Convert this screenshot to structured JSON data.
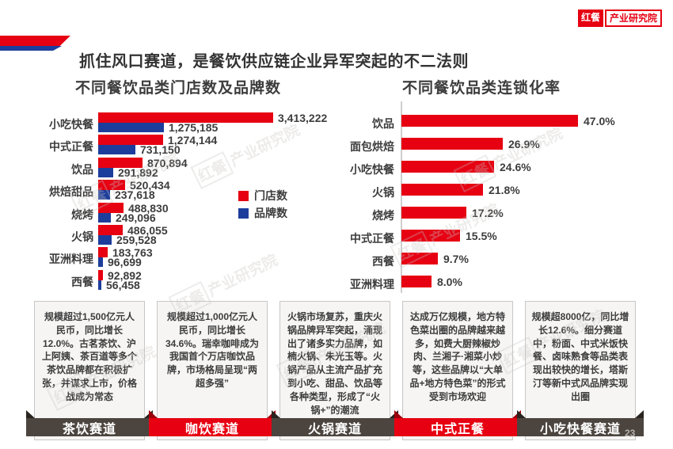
{
  "page": {
    "title": "抓住风口赛道，是餐饮供应链企业异军突起的不二法则",
    "page_number": "23"
  },
  "logo": {
    "primary": "红餐",
    "secondary": "产业研究院"
  },
  "watermark": {
    "brand": "红餐",
    "suffix": "产业研究院"
  },
  "colors": {
    "brand_red": "#e60012",
    "bar_blue": "#1d3d9c",
    "ribbon_dark": "#4c453f",
    "deco_blue": "#1d3d9c"
  },
  "chart_data": [
    {
      "type": "bar",
      "orientation": "horizontal",
      "title": "不同餐饮品类门店数及品牌数",
      "categories": [
        "小吃快餐",
        "中式正餐",
        "饮品",
        "烘焙甜品",
        "烧烤",
        "火锅",
        "亚洲料理",
        "西餐"
      ],
      "series": [
        {
          "name": "门店数",
          "color": "#e60012",
          "values": [
            3413222,
            1274144,
            870894,
            520434,
            488830,
            486055,
            183763,
            92892
          ],
          "labels": [
            "3,413,222",
            "1,274,144",
            "870,894",
            "520,434",
            "488,830",
            "486,055",
            "183,763",
            "92,892"
          ]
        },
        {
          "name": "品牌数",
          "color": "#1d3d9c",
          "values": [
            1275185,
            731150,
            291892,
            237618,
            249096,
            259528,
            96699,
            56458
          ],
          "labels": [
            "1,275,185",
            "731,150",
            "291,892",
            "237,618",
            "249,096",
            "259,528",
            "96,699",
            "56,458"
          ]
        }
      ],
      "xlim": [
        0,
        3413222
      ],
      "legend_position": "right-middle",
      "grid": false
    },
    {
      "type": "bar",
      "orientation": "horizontal",
      "title": "不同餐饮品类连锁化率",
      "categories": [
        "饮品",
        "面包烘焙",
        "小吃快餐",
        "火锅",
        "烧烤",
        "中式正餐",
        "西餐",
        "亚洲料理"
      ],
      "values": [
        47.0,
        26.9,
        24.6,
        21.8,
        17.2,
        15.5,
        9.7,
        8.0
      ],
      "labels": [
        "47.0%",
        "26.9%",
        "24.6%",
        "21.8%",
        "17.2%",
        "15.5%",
        "9.7%",
        "8.0%"
      ],
      "xlim": [
        0,
        47
      ],
      "bar_color": "#e60012",
      "grid": false
    }
  ],
  "tracks": [
    {
      "text": "规模超过1,500亿元人民币，同比增长12.0%。古茗茶饮、沪上阿姨、茶百道等多个茶饮品牌都在积极扩张，并谋求上市，价格战成为常态",
      "label": "茶饮赛道",
      "style": "dark"
    },
    {
      "text": "规模超过1,000亿元人民币，同比增长34.6%。瑞幸咖啡成为我国首个万店咖饮品牌，市场格局呈现“两超多强”",
      "label": "咖饮赛道",
      "style": "red"
    },
    {
      "text": "火锅市场复苏，重庆火锅品牌异军突起，涌现出了诸多实力品牌，如楠火锅、朱光玉等。火锅产品从主流产品扩充到小吃、甜品、饮品等各种类型，形成了“火锅+”的潮流",
      "label": "火锅赛道",
      "style": "dark"
    },
    {
      "text": "达成万亿规模，地方特色菜出圈的品牌越来越多，如费大厨辣椒炒肉、兰湘子·湘菜小炒等，这些品牌以“大单品+地方特色菜”的形式受到市场欢迎",
      "label": "中式正餐",
      "style": "red"
    },
    {
      "text": "规模超8000亿，同比增长12.6%。细分赛道中，粉面、中式米饭快餐、卤味熟食等品类表现出较快的增长，塔斯汀等新中式风品牌实现出圈",
      "label": "小吃快餐赛道",
      "style": "dark"
    }
  ]
}
